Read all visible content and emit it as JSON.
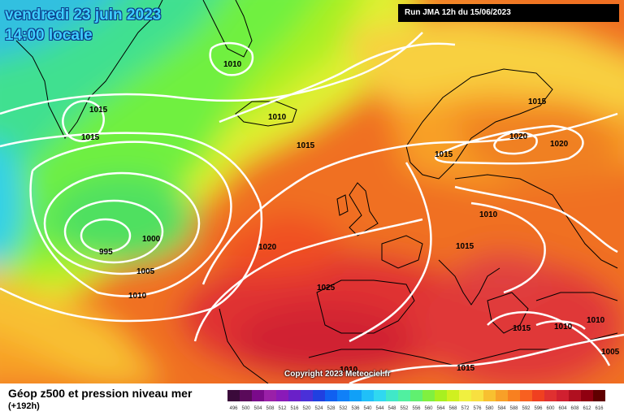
{
  "header": {
    "date": "vendredi 23 juin 2023",
    "time": "14:00 locale",
    "run": "Run JMA 12h du 15/06/2023"
  },
  "copyright": "Copyright 2023 Meteociel.fr",
  "footer": {
    "title": "Géop z500 et pression niveau mer",
    "lead": "(+192h)"
  },
  "legend": {
    "values": [
      "496",
      "500",
      "504",
      "508",
      "512",
      "516",
      "520",
      "524",
      "528",
      "532",
      "536",
      "540",
      "544",
      "548",
      "552",
      "556",
      "560",
      "564",
      "568",
      "572",
      "576",
      "580",
      "584",
      "588",
      "592",
      "596",
      "600",
      "604",
      "608",
      "612",
      "616"
    ],
    "colors": [
      "#3a0a3a",
      "#5a0a5a",
      "#7a0a8a",
      "#9a20a8",
      "#8a1ab8",
      "#6a20c8",
      "#4a30d8",
      "#2040e0",
      "#1060f0",
      "#1080f8",
      "#10a0f8",
      "#20c0f8",
      "#30d8f0",
      "#40e8c8",
      "#50f0a0",
      "#60f070",
      "#80f040",
      "#a8f020",
      "#d0f020",
      "#f0f040",
      "#f8e040",
      "#f8c030",
      "#f8a028",
      "#f88020",
      "#f86020",
      "#f04020",
      "#e03030",
      "#d02030",
      "#b01020",
      "#900010",
      "#600000"
    ]
  },
  "isobars": [
    {
      "label": "1015",
      "pos": "greenland-west"
    },
    {
      "label": "1015",
      "pos": "greenland-south"
    },
    {
      "label": "1010",
      "pos": "greenland-east"
    },
    {
      "label": "1010",
      "pos": "iceland"
    },
    {
      "label": "1015",
      "pos": "north-atlantic"
    },
    {
      "label": "995",
      "pos": "low-center"
    },
    {
      "label": "1000",
      "pos": "low-east"
    },
    {
      "label": "1005",
      "pos": "low-south"
    },
    {
      "label": "1010",
      "pos": "low-outer"
    },
    {
      "label": "1020",
      "pos": "atlantic-mid"
    },
    {
      "label": "1025",
      "pos": "azores"
    },
    {
      "label": "1015",
      "pos": "norway"
    },
    {
      "label": "1015",
      "pos": "finland"
    },
    {
      "label": "1020",
      "pos": "scandinavia-high-a"
    },
    {
      "label": "1020",
      "pos": "scandinavia-high-b"
    },
    {
      "label": "1010",
      "pos": "central-europe"
    },
    {
      "label": "1015",
      "pos": "alps"
    },
    {
      "label": "1015",
      "pos": "balkans"
    },
    {
      "label": "1010",
      "pos": "aegean"
    },
    {
      "label": "1010",
      "pos": "turkey"
    },
    {
      "label": "1005",
      "pos": "east-med"
    },
    {
      "label": "1010",
      "pos": "north-africa"
    },
    {
      "label": "1015",
      "pos": "libya"
    }
  ]
}
